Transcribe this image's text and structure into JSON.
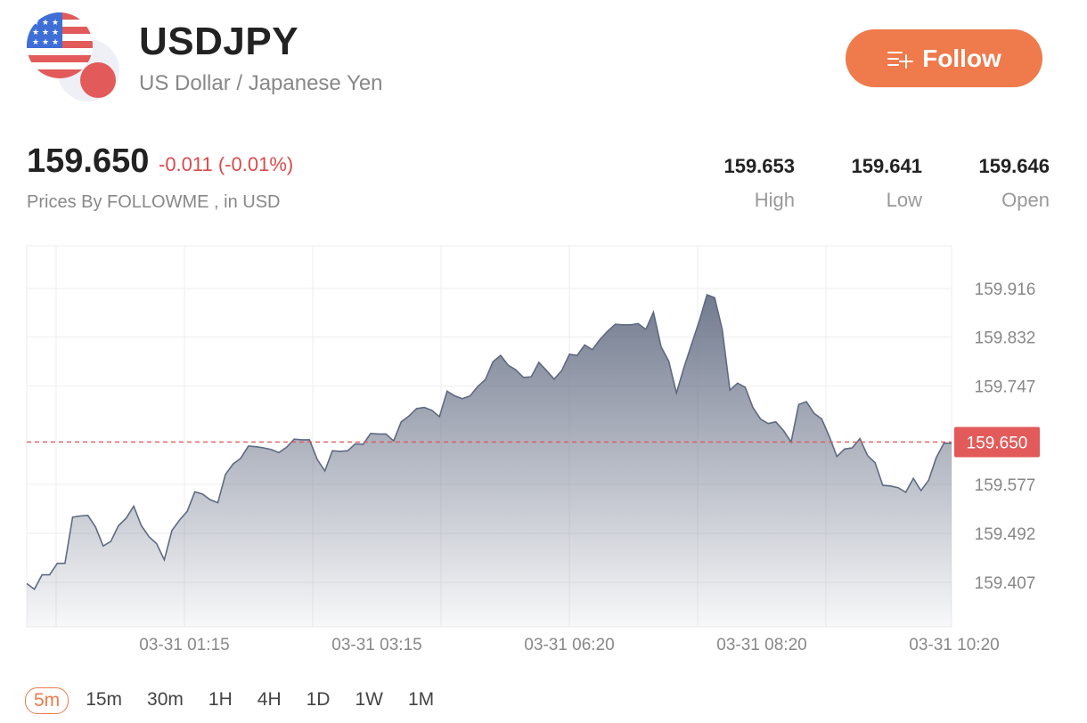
{
  "header": {
    "symbol": "USDJPY",
    "name": "US Dollar / Japanese Yen",
    "follow_label": "Follow"
  },
  "quote": {
    "price": "159.650",
    "change": "-0.011 (-0.01%)",
    "source": "Prices By FOLLOWME , in USD",
    "stats": [
      {
        "value": "159.653",
        "label": "High"
      },
      {
        "value": "159.641",
        "label": "Low"
      },
      {
        "value": "159.646",
        "label": "Open"
      }
    ]
  },
  "colors": {
    "accent": "#ef7a4b",
    "down": "#d94b4b",
    "area": "#6b7489",
    "current_line": "#e25a5a"
  },
  "chart_data": {
    "type": "area",
    "x_ticks": [
      "03-31 01:15",
      "03-31 03:15",
      "03-31 06:20",
      "03-31 08:20",
      "03-31 10:20"
    ],
    "y_ticks": [
      "159.916",
      "159.832",
      "159.747",
      "159.577",
      "159.492",
      "159.407"
    ],
    "ylim": [
      159.33,
      159.99
    ],
    "current_value": 159.65,
    "current_label": "159.650",
    "grid": true,
    "values": [
      159.405,
      159.395,
      159.42,
      159.42,
      159.44,
      159.44,
      159.52,
      159.522,
      159.523,
      159.503,
      159.47,
      159.478,
      159.505,
      159.518,
      159.539,
      159.505,
      159.486,
      159.474,
      159.446,
      159.497,
      159.515,
      159.53,
      159.564,
      159.56,
      159.55,
      159.545,
      159.594,
      159.612,
      159.622,
      159.643,
      159.642,
      159.64,
      159.637,
      159.632,
      159.641,
      159.655,
      159.654,
      159.654,
      159.62,
      159.6,
      159.635,
      159.634,
      159.635,
      159.647,
      159.646,
      159.665,
      159.664,
      159.664,
      159.652,
      159.685,
      159.695,
      159.708,
      159.71,
      159.705,
      159.694,
      159.738,
      159.73,
      159.725,
      159.73,
      159.746,
      159.758,
      159.789,
      159.8,
      159.783,
      159.775,
      159.762,
      159.763,
      159.788,
      159.774,
      159.759,
      159.774,
      159.802,
      159.8,
      159.818,
      159.81,
      159.828,
      159.842,
      159.854,
      159.853,
      159.853,
      159.855,
      159.845,
      159.875,
      159.815,
      159.79,
      159.735,
      159.78,
      159.82,
      159.86,
      159.905,
      159.9,
      159.845,
      159.74,
      159.752,
      159.745,
      159.71,
      159.69,
      159.682,
      159.685,
      159.67,
      159.65,
      159.715,
      159.72,
      159.7,
      159.69,
      159.66,
      159.625,
      159.638,
      159.64,
      159.656,
      159.627,
      159.614,
      159.575,
      159.574,
      159.571,
      159.563,
      159.587,
      159.566,
      159.584,
      159.623,
      159.648,
      159.648
    ]
  },
  "periods": [
    {
      "label": "5m",
      "active": true
    },
    {
      "label": "15m",
      "active": false
    },
    {
      "label": "30m",
      "active": false
    },
    {
      "label": "1H",
      "active": false
    },
    {
      "label": "4H",
      "active": false
    },
    {
      "label": "1D",
      "active": false
    },
    {
      "label": "1W",
      "active": false
    },
    {
      "label": "1M",
      "active": false
    }
  ]
}
